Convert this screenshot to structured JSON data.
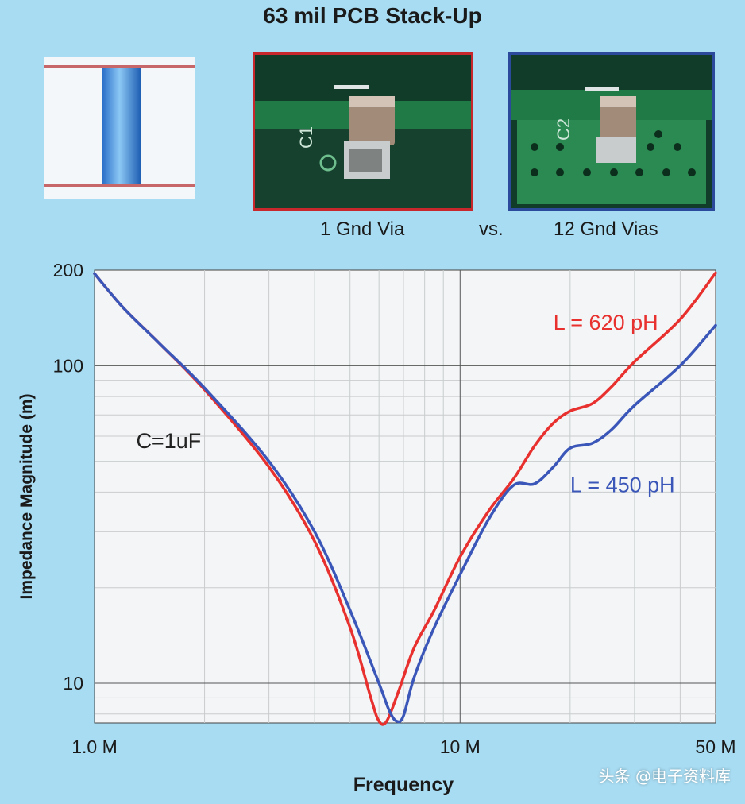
{
  "header": {
    "title": "63 mil PCB Stack-Up"
  },
  "photos": {
    "left_silk": "C1",
    "right_silk": "C2",
    "left_caption": "1 Gnd Via",
    "vs_caption": "vs.",
    "right_caption": "12 Gnd Vias"
  },
  "watermark": "头条 @电子资料库",
  "colors": {
    "red_curve": "#e8302e",
    "blue_curve": "#3a56b8",
    "background": "#a8dcf2",
    "plot_bg": "#f3f5f6"
  },
  "chart_data": {
    "type": "line",
    "xlabel": "Frequency",
    "ylabel": "Impedance Magnitude (m)",
    "x_scale": "log",
    "y_scale": "log",
    "xlim": [
      1000000,
      50000000
    ],
    "ylim": [
      7.5,
      200
    ],
    "x_ticks": [
      {
        "value": 1000000,
        "label": "1.0 M"
      },
      {
        "value": 10000000,
        "label": "10 M"
      },
      {
        "value": 50000000,
        "label": "50 M"
      }
    ],
    "y_ticks": [
      {
        "value": 10,
        "label": "10"
      },
      {
        "value": 100,
        "label": "100"
      },
      {
        "value": 200,
        "label": "200"
      }
    ],
    "grid": true,
    "annotations": [
      {
        "text": "L = 620 pH",
        "color": "#e8302e",
        "x": 18000000,
        "y": 130
      },
      {
        "text": "L = 450 pH",
        "color": "#3a56b8",
        "x": 20000000,
        "y": 40
      },
      {
        "text": "C=1uF",
        "color": "#222222",
        "x": 1300000,
        "y": 55
      }
    ],
    "series": [
      {
        "name": "L = 620 pH",
        "color": "#e8302e",
        "points": [
          [
            1000000,
            195
          ],
          [
            1200000,
            152
          ],
          [
            1500000,
            118
          ],
          [
            2000000,
            84
          ],
          [
            3000000,
            48
          ],
          [
            4000000,
            28
          ],
          [
            5000000,
            15
          ],
          [
            5700000,
            9
          ],
          [
            6000000,
            7.6
          ],
          [
            6300000,
            7.6
          ],
          [
            6800000,
            9.5
          ],
          [
            7500000,
            13
          ],
          [
            8500000,
            17
          ],
          [
            10000000,
            25
          ],
          [
            12000000,
            35
          ],
          [
            14000000,
            44
          ],
          [
            16000000,
            56
          ],
          [
            18000000,
            66
          ],
          [
            20000000,
            72
          ],
          [
            23000000,
            76
          ],
          [
            26000000,
            86
          ],
          [
            30000000,
            103
          ],
          [
            40000000,
            140
          ],
          [
            50000000,
            196
          ]
        ]
      },
      {
        "name": "L = 450 pH",
        "color": "#3a56b8",
        "points": [
          [
            1000000,
            195
          ],
          [
            1200000,
            152
          ],
          [
            1500000,
            118
          ],
          [
            2000000,
            85
          ],
          [
            3000000,
            50
          ],
          [
            4000000,
            30
          ],
          [
            5000000,
            17
          ],
          [
            6000000,
            10
          ],
          [
            6400000,
            8.2
          ],
          [
            6700000,
            7.6
          ],
          [
            7000000,
            7.9
          ],
          [
            7500000,
            10.5
          ],
          [
            8500000,
            15
          ],
          [
            10000000,
            22
          ],
          [
            12000000,
            33
          ],
          [
            14000000,
            42
          ],
          [
            16000000,
            42.5
          ],
          [
            18000000,
            48
          ],
          [
            20000000,
            55
          ],
          [
            23000000,
            57
          ],
          [
            26000000,
            63
          ],
          [
            30000000,
            75
          ],
          [
            40000000,
            100
          ],
          [
            50000000,
            134
          ]
        ]
      }
    ]
  }
}
